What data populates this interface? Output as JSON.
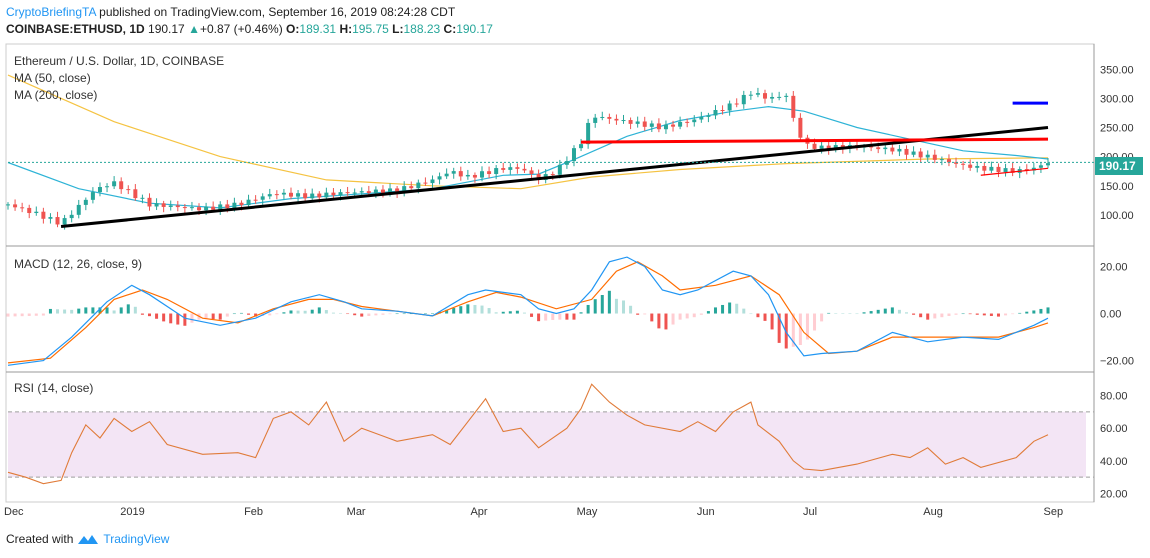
{
  "header": {
    "author": "CryptoBriefingTA",
    "published": " published on TradingView.com, September 16, 2019 08:24:28 CDT",
    "symbol": "COINBASE:ETHUSD, 1D",
    "last": "190.17",
    "change": "+0.87 (+0.46%)",
    "o_label": "O:",
    "o": "189.31",
    "h_label": "H:",
    "h": "195.75",
    "l_label": "L:",
    "l": "188.23",
    "c_label": "C:",
    "c": "190.17"
  },
  "footer": {
    "created": "Created with",
    "brand": "TradingView"
  },
  "colors": {
    "up": "#26a69a",
    "down": "#ef5350",
    "ma50": "#2db3d6",
    "ma200": "#f5c342",
    "macd": "#2196f3",
    "signal": "#ff6d00",
    "rsi": "#e07b39",
    "trend_black": "#000000",
    "trend_red": "#ff0000",
    "trend_blue": "#0000ff"
  },
  "chart_data": [
    {
      "type": "line",
      "title": "Ethereum / U.S. Dollar, 1D, COINBASE",
      "legend": [
        "MA (50, close)",
        "MA (200, close)"
      ],
      "price_label": "190.17",
      "yticks": [
        "350.00",
        "300.00",
        "250.00",
        "200.00",
        "150.00",
        "100.00"
      ],
      "ytick_values": [
        350,
        300,
        250,
        200,
        150,
        100
      ],
      "ylim": [
        50,
        390
      ],
      "xticks": [
        "Dec",
        "2019",
        "Feb",
        "Mar",
        "Apr",
        "May",
        "Jun",
        "Jul",
        "Aug",
        "Sep"
      ],
      "x_months": [
        "2018-12",
        "2019-01",
        "2019-02",
        "2019-03",
        "2019-04",
        "2019-05",
        "2019-06",
        "2019-07",
        "2019-08",
        "2019-09"
      ],
      "close": [
        [
          0,
          118
        ],
        [
          8,
          102
        ],
        [
          15,
          85
        ],
        [
          20,
          115
        ],
        [
          25,
          145
        ],
        [
          30,
          155
        ],
        [
          40,
          118
        ],
        [
          55,
          110
        ],
        [
          65,
          118
        ],
        [
          75,
          137
        ],
        [
          85,
          132
        ],
        [
          95,
          138
        ],
        [
          110,
          142
        ],
        [
          120,
          160
        ],
        [
          125,
          175
        ],
        [
          130,
          165
        ],
        [
          140,
          180
        ],
        [
          145,
          180
        ],
        [
          150,
          162
        ],
        [
          155,
          175
        ],
        [
          162,
          225
        ],
        [
          165,
          270
        ],
        [
          175,
          260
        ],
        [
          185,
          250
        ],
        [
          195,
          265
        ],
        [
          205,
          290
        ],
        [
          210,
          310
        ],
        [
          215,
          300
        ],
        [
          220,
          305
        ],
        [
          222,
          265
        ],
        [
          225,
          220
        ],
        [
          230,
          215
        ],
        [
          240,
          218
        ],
        [
          250,
          212
        ],
        [
          260,
          200
        ],
        [
          270,
          185
        ],
        [
          275,
          180
        ],
        [
          285,
          175
        ],
        [
          290,
          180
        ],
        [
          294,
          190
        ]
      ],
      "ma50": [
        [
          0,
          190
        ],
        [
          20,
          145
        ],
        [
          40,
          120
        ],
        [
          60,
          112
        ],
        [
          80,
          128
        ],
        [
          100,
          136
        ],
        [
          120,
          145
        ],
        [
          140,
          168
        ],
        [
          150,
          170
        ],
        [
          160,
          195
        ],
        [
          175,
          235
        ],
        [
          190,
          262
        ],
        [
          205,
          278
        ],
        [
          215,
          286
        ],
        [
          225,
          278
        ],
        [
          240,
          250
        ],
        [
          255,
          230
        ],
        [
          270,
          210
        ],
        [
          285,
          202
        ],
        [
          294,
          196
        ]
      ],
      "ma200": [
        [
          0,
          340
        ],
        [
          30,
          260
        ],
        [
          60,
          200
        ],
        [
          90,
          160
        ],
        [
          120,
          150
        ],
        [
          145,
          145
        ],
        [
          165,
          165
        ],
        [
          190,
          178
        ],
        [
          220,
          188
        ],
        [
          260,
          196
        ],
        [
          294,
          198
        ]
      ],
      "trendlines": [
        {
          "name": "rising support",
          "color": "black",
          "points": [
            [
              15,
              80
            ],
            [
              294,
              250
            ]
          ]
        },
        {
          "name": "horizontal resistance",
          "color": "red",
          "points": [
            [
              162,
              225
            ],
            [
              294,
              230
            ]
          ]
        },
        {
          "name": "recent support",
          "color": "red",
          "points": [
            [
              275,
              168
            ],
            [
              294,
              180
            ]
          ]
        },
        {
          "name": "target",
          "color": "blue",
          "points": [
            [
              284,
              292
            ],
            [
              294,
              292
            ]
          ]
        }
      ]
    },
    {
      "type": "line",
      "title": "MACD (12, 26, close, 9)",
      "yticks": [
        "20.00",
        "0.00",
        "−20.00"
      ],
      "ytick_values": [
        20,
        0,
        -20
      ],
      "ylim": [
        -24,
        27
      ],
      "macd": [
        [
          0,
          -22
        ],
        [
          10,
          -20
        ],
        [
          18,
          -10
        ],
        [
          28,
          5
        ],
        [
          35,
          12
        ],
        [
          40,
          8
        ],
        [
          50,
          -2
        ],
        [
          60,
          -5
        ],
        [
          70,
          -2
        ],
        [
          80,
          5
        ],
        [
          88,
          8
        ],
        [
          95,
          5
        ],
        [
          100,
          2
        ],
        [
          110,
          1
        ],
        [
          120,
          -1
        ],
        [
          130,
          8
        ],
        [
          135,
          10
        ],
        [
          145,
          8
        ],
        [
          150,
          2
        ],
        [
          155,
          0
        ],
        [
          160,
          2
        ],
        [
          165,
          10
        ],
        [
          170,
          22
        ],
        [
          175,
          24
        ],
        [
          180,
          20
        ],
        [
          185,
          10
        ],
        [
          190,
          8
        ],
        [
          195,
          10
        ],
        [
          205,
          18
        ],
        [
          210,
          16
        ],
        [
          215,
          8
        ],
        [
          220,
          -8
        ],
        [
          225,
          -18
        ],
        [
          230,
          -17
        ],
        [
          240,
          -16
        ],
        [
          250,
          -8
        ],
        [
          260,
          -12
        ],
        [
          270,
          -10
        ],
        [
          280,
          -11
        ],
        [
          290,
          -5
        ],
        [
          294,
          -2
        ]
      ],
      "signal": [
        [
          0,
          -21
        ],
        [
          12,
          -19
        ],
        [
          22,
          -6
        ],
        [
          30,
          6
        ],
        [
          38,
          10
        ],
        [
          45,
          6
        ],
        [
          55,
          -2
        ],
        [
          65,
          -4
        ],
        [
          75,
          2
        ],
        [
          85,
          6
        ],
        [
          92,
          6
        ],
        [
          100,
          3
        ],
        [
          110,
          1
        ],
        [
          120,
          -1
        ],
        [
          130,
          5
        ],
        [
          138,
          9
        ],
        [
          145,
          7
        ],
        [
          155,
          2
        ],
        [
          165,
          6
        ],
        [
          172,
          18
        ],
        [
          178,
          22
        ],
        [
          185,
          16
        ],
        [
          190,
          10
        ],
        [
          200,
          12
        ],
        [
          210,
          16
        ],
        [
          218,
          8
        ],
        [
          225,
          -8
        ],
        [
          232,
          -17
        ],
        [
          240,
          -16
        ],
        [
          250,
          -10
        ],
        [
          260,
          -10
        ],
        [
          270,
          -10
        ],
        [
          280,
          -10
        ],
        [
          290,
          -6
        ],
        [
          294,
          -4
        ]
      ]
    },
    {
      "type": "line",
      "title": "RSI (14, close)",
      "yticks": [
        "80.00",
        "60.00",
        "40.00",
        "20.00"
      ],
      "ytick_values": [
        80,
        60,
        40,
        20
      ],
      "ylim": [
        16,
        92
      ],
      "bands": [
        70,
        30
      ],
      "rsi": [
        [
          0,
          33
        ],
        [
          5,
          30
        ],
        [
          10,
          26
        ],
        [
          15,
          28
        ],
        [
          18,
          45
        ],
        [
          22,
          62
        ],
        [
          26,
          54
        ],
        [
          30,
          66
        ],
        [
          35,
          58
        ],
        [
          40,
          64
        ],
        [
          45,
          50
        ],
        [
          55,
          44
        ],
        [
          65,
          45
        ],
        [
          70,
          42
        ],
        [
          75,
          66
        ],
        [
          80,
          70
        ],
        [
          85,
          62
        ],
        [
          90,
          76
        ],
        [
          95,
          52
        ],
        [
          100,
          60
        ],
        [
          110,
          52
        ],
        [
          120,
          56
        ],
        [
          125,
          50
        ],
        [
          130,
          64
        ],
        [
          135,
          78
        ],
        [
          140,
          58
        ],
        [
          145,
          60
        ],
        [
          150,
          48
        ],
        [
          158,
          60
        ],
        [
          162,
          72
        ],
        [
          165,
          87
        ],
        [
          170,
          76
        ],
        [
          175,
          68
        ],
        [
          180,
          62
        ],
        [
          190,
          58
        ],
        [
          195,
          64
        ],
        [
          200,
          58
        ],
        [
          205,
          70
        ],
        [
          210,
          76
        ],
        [
          212,
          62
        ],
        [
          218,
          52
        ],
        [
          222,
          40
        ],
        [
          225,
          35
        ],
        [
          230,
          34
        ],
        [
          240,
          38
        ],
        [
          250,
          44
        ],
        [
          255,
          42
        ],
        [
          260,
          48
        ],
        [
          265,
          38
        ],
        [
          270,
          42
        ],
        [
          275,
          36
        ],
        [
          285,
          42
        ],
        [
          290,
          52
        ],
        [
          294,
          56
        ]
      ]
    }
  ]
}
